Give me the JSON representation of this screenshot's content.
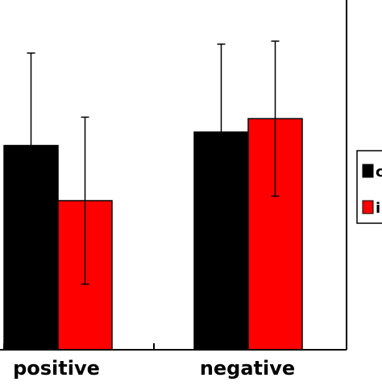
{
  "chart_data": {
    "type": "bar",
    "categories": [
      "positive",
      "negative"
    ],
    "series": [
      {
        "color": "#000000",
        "values": [
          1.37,
          1.46
        ],
        "errors": [
          0.62,
          0.59
        ]
      },
      {
        "color": "#ff0000",
        "values": [
          1.0,
          1.55
        ],
        "errors": [
          0.56,
          0.52
        ]
      }
    ],
    "legend": {
      "placement": "right",
      "entries": [
        "c",
        "i"
      ]
    },
    "grid": false
  }
}
